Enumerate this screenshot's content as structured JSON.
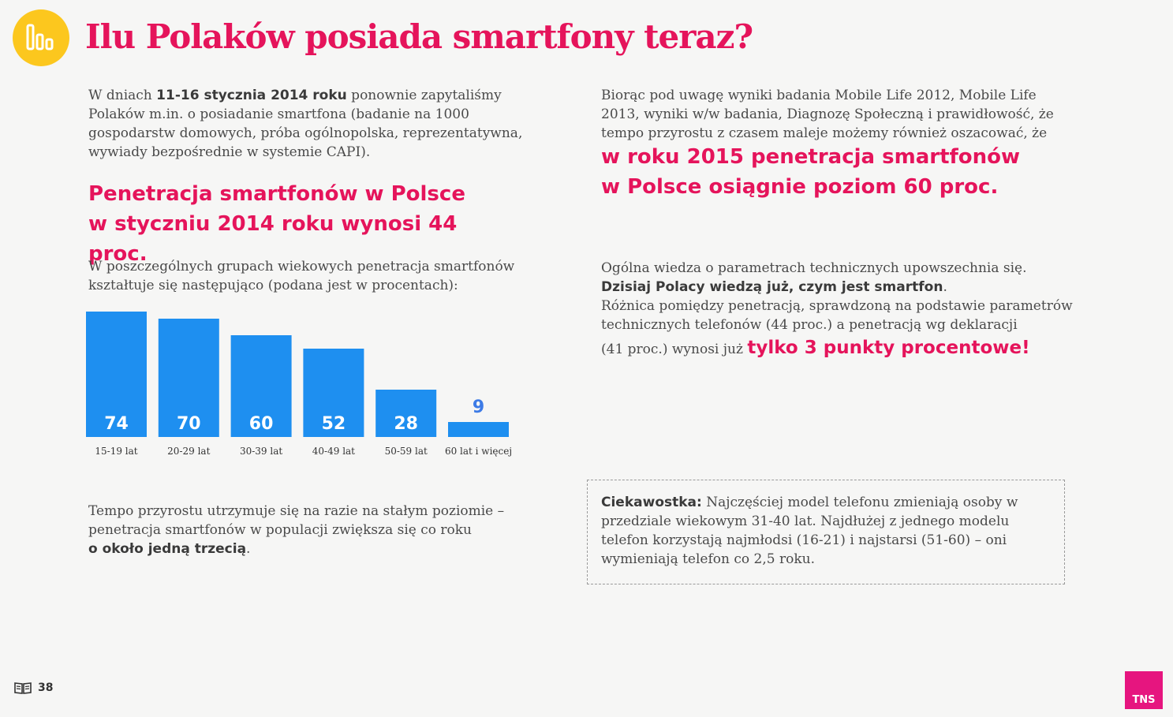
{
  "title": "Ilu Polaków posiada smartfony teraz?",
  "left": {
    "intro": {
      "pre": "W dniach ",
      "bold": "11-16 stycznia 2014 roku",
      "post": " ponownie zapytaliśmy Polaków m.in. o posiadanie smartfona (badanie na 1000 gospodarstw domowych, próba ogólnopolska, reprezentatywna, wywiady bezpośrednie w systemie CAPI)."
    },
    "headline": "Penetracja smartfonów w Polsce w styczniu 2014 roku wynosi 44 proc.",
    "chart_intro": "W poszczególnych grupach wiekowych penetracja smartfonów kształtuje się następująco (podana jest w procentach):",
    "growth": {
      "text": "Tempo przyrostu utrzymuje się na razie na stałym poziomie – penetracja smartfonów w populacji zwiększa się co roku",
      "bold": "o około jedną trzecią",
      "end": "."
    }
  },
  "right": {
    "forecast_text": "Biorąc pod uwagę wyniki badania Mobile Life 2012, Mobile Life 2013, wyniki w/w badania, Diagnozę Społeczną i prawidłowość, że tempo przyrostu z czasem maleje możemy również oszacować, że",
    "forecast_line1": "w roku 2015 penetracja smartfonów",
    "forecast_line2": "w Polsce osiągnie poziom 60 proc.",
    "knowledge": {
      "line1": "Ogólna wiedza o parametrach technicznych upowszechnia się.",
      "bold": "Dzisiaj Polacy wiedzą już, czym jest smartfon",
      "bold_end": ".",
      "line3": "Różnica pomiędzy penetracją, sprawdzoną na podstawie parametrów technicznych telefonów (44 proc.) a penetracją wg deklaracji",
      "line4": "(41 proc.) wynosi już ",
      "highlight": "tylko 3 punkty procentowe!"
    },
    "fact": {
      "label": "Ciekawostka:",
      "text": " Najczęściej model telefonu zmieniają osoby w przedziale wiekowym 31-40 lat. Najdłużej z jednego modelu telefon korzystają najmłodsi (16-21) i najstarsi (51-60) – oni wymieniają telefon co 2,5 roku."
    }
  },
  "chart_data": {
    "type": "bar",
    "title": "",
    "xlabel": "",
    "ylabel": "",
    "categories": [
      "15-19 lat",
      "20-29 lat",
      "30-39 lat",
      "40-49 lat",
      "50-59 lat",
      "60 lat i więcej"
    ],
    "values": [
      74,
      70,
      60,
      52,
      28,
      9
    ],
    "ylim": [
      0,
      74
    ],
    "bar_color": "#1e8ff0"
  },
  "footer": {
    "page_number": "38",
    "logo": "TNS"
  },
  "colors": {
    "accent": "#e5145b",
    "icon_bg": "#fcc71e",
    "bar": "#1e8ff0",
    "logo_bg": "#e6157f"
  }
}
